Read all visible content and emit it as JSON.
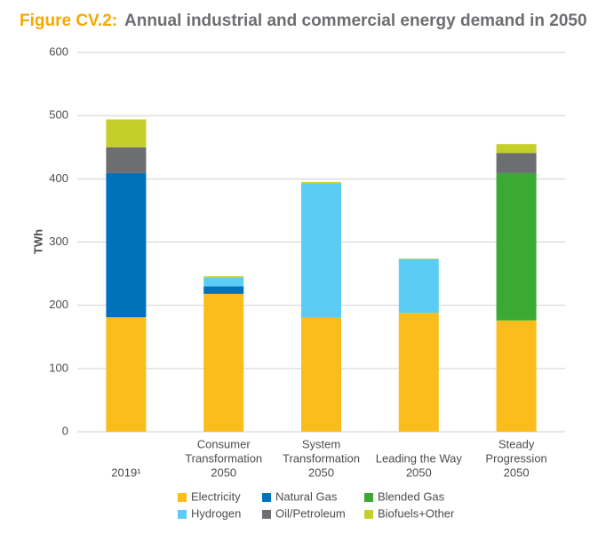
{
  "chart_data": {
    "type": "stacked_bar",
    "title_label": "Figure CV.2:",
    "title": "Annual industrial and commercial energy demand in 2050",
    "y_label": "TWh",
    "categories": [
      [
        "2019¹"
      ],
      [
        "Consumer",
        "Transformation",
        "2050"
      ],
      [
        "System",
        "Transformation",
        "2050"
      ],
      [
        "Leading the Way",
        "2050"
      ],
      [
        "Steady",
        "Progression",
        "2050"
      ]
    ],
    "series": [
      {
        "name": "Electricity",
        "color": "#fbbd1c",
        "values": [
          181,
          218,
          180,
          188,
          176
        ]
      },
      {
        "name": "Natural Gas",
        "color": "#0072bc",
        "values": [
          228,
          12,
          0,
          0,
          0
        ]
      },
      {
        "name": "Blended Gas",
        "color": "#3aaa35",
        "values": [
          0,
          0,
          0,
          0,
          233
        ]
      },
      {
        "name": "Hydrogen",
        "color": "#5bcdf5",
        "values": [
          0,
          14,
          212,
          85,
          0
        ]
      },
      {
        "name": "Oil/Petroleum",
        "color": "#6d6e71",
        "values": [
          41,
          0,
          0,
          0,
          32
        ]
      },
      {
        "name": "Biofuels+Other",
        "color": "#c4cf2a",
        "values": [
          44,
          2,
          3,
          1,
          14
        ]
      }
    ],
    "ylim": [
      0,
      600
    ],
    "yticks": [
      0,
      100,
      200,
      300,
      400,
      500,
      600
    ],
    "grid": true
  }
}
